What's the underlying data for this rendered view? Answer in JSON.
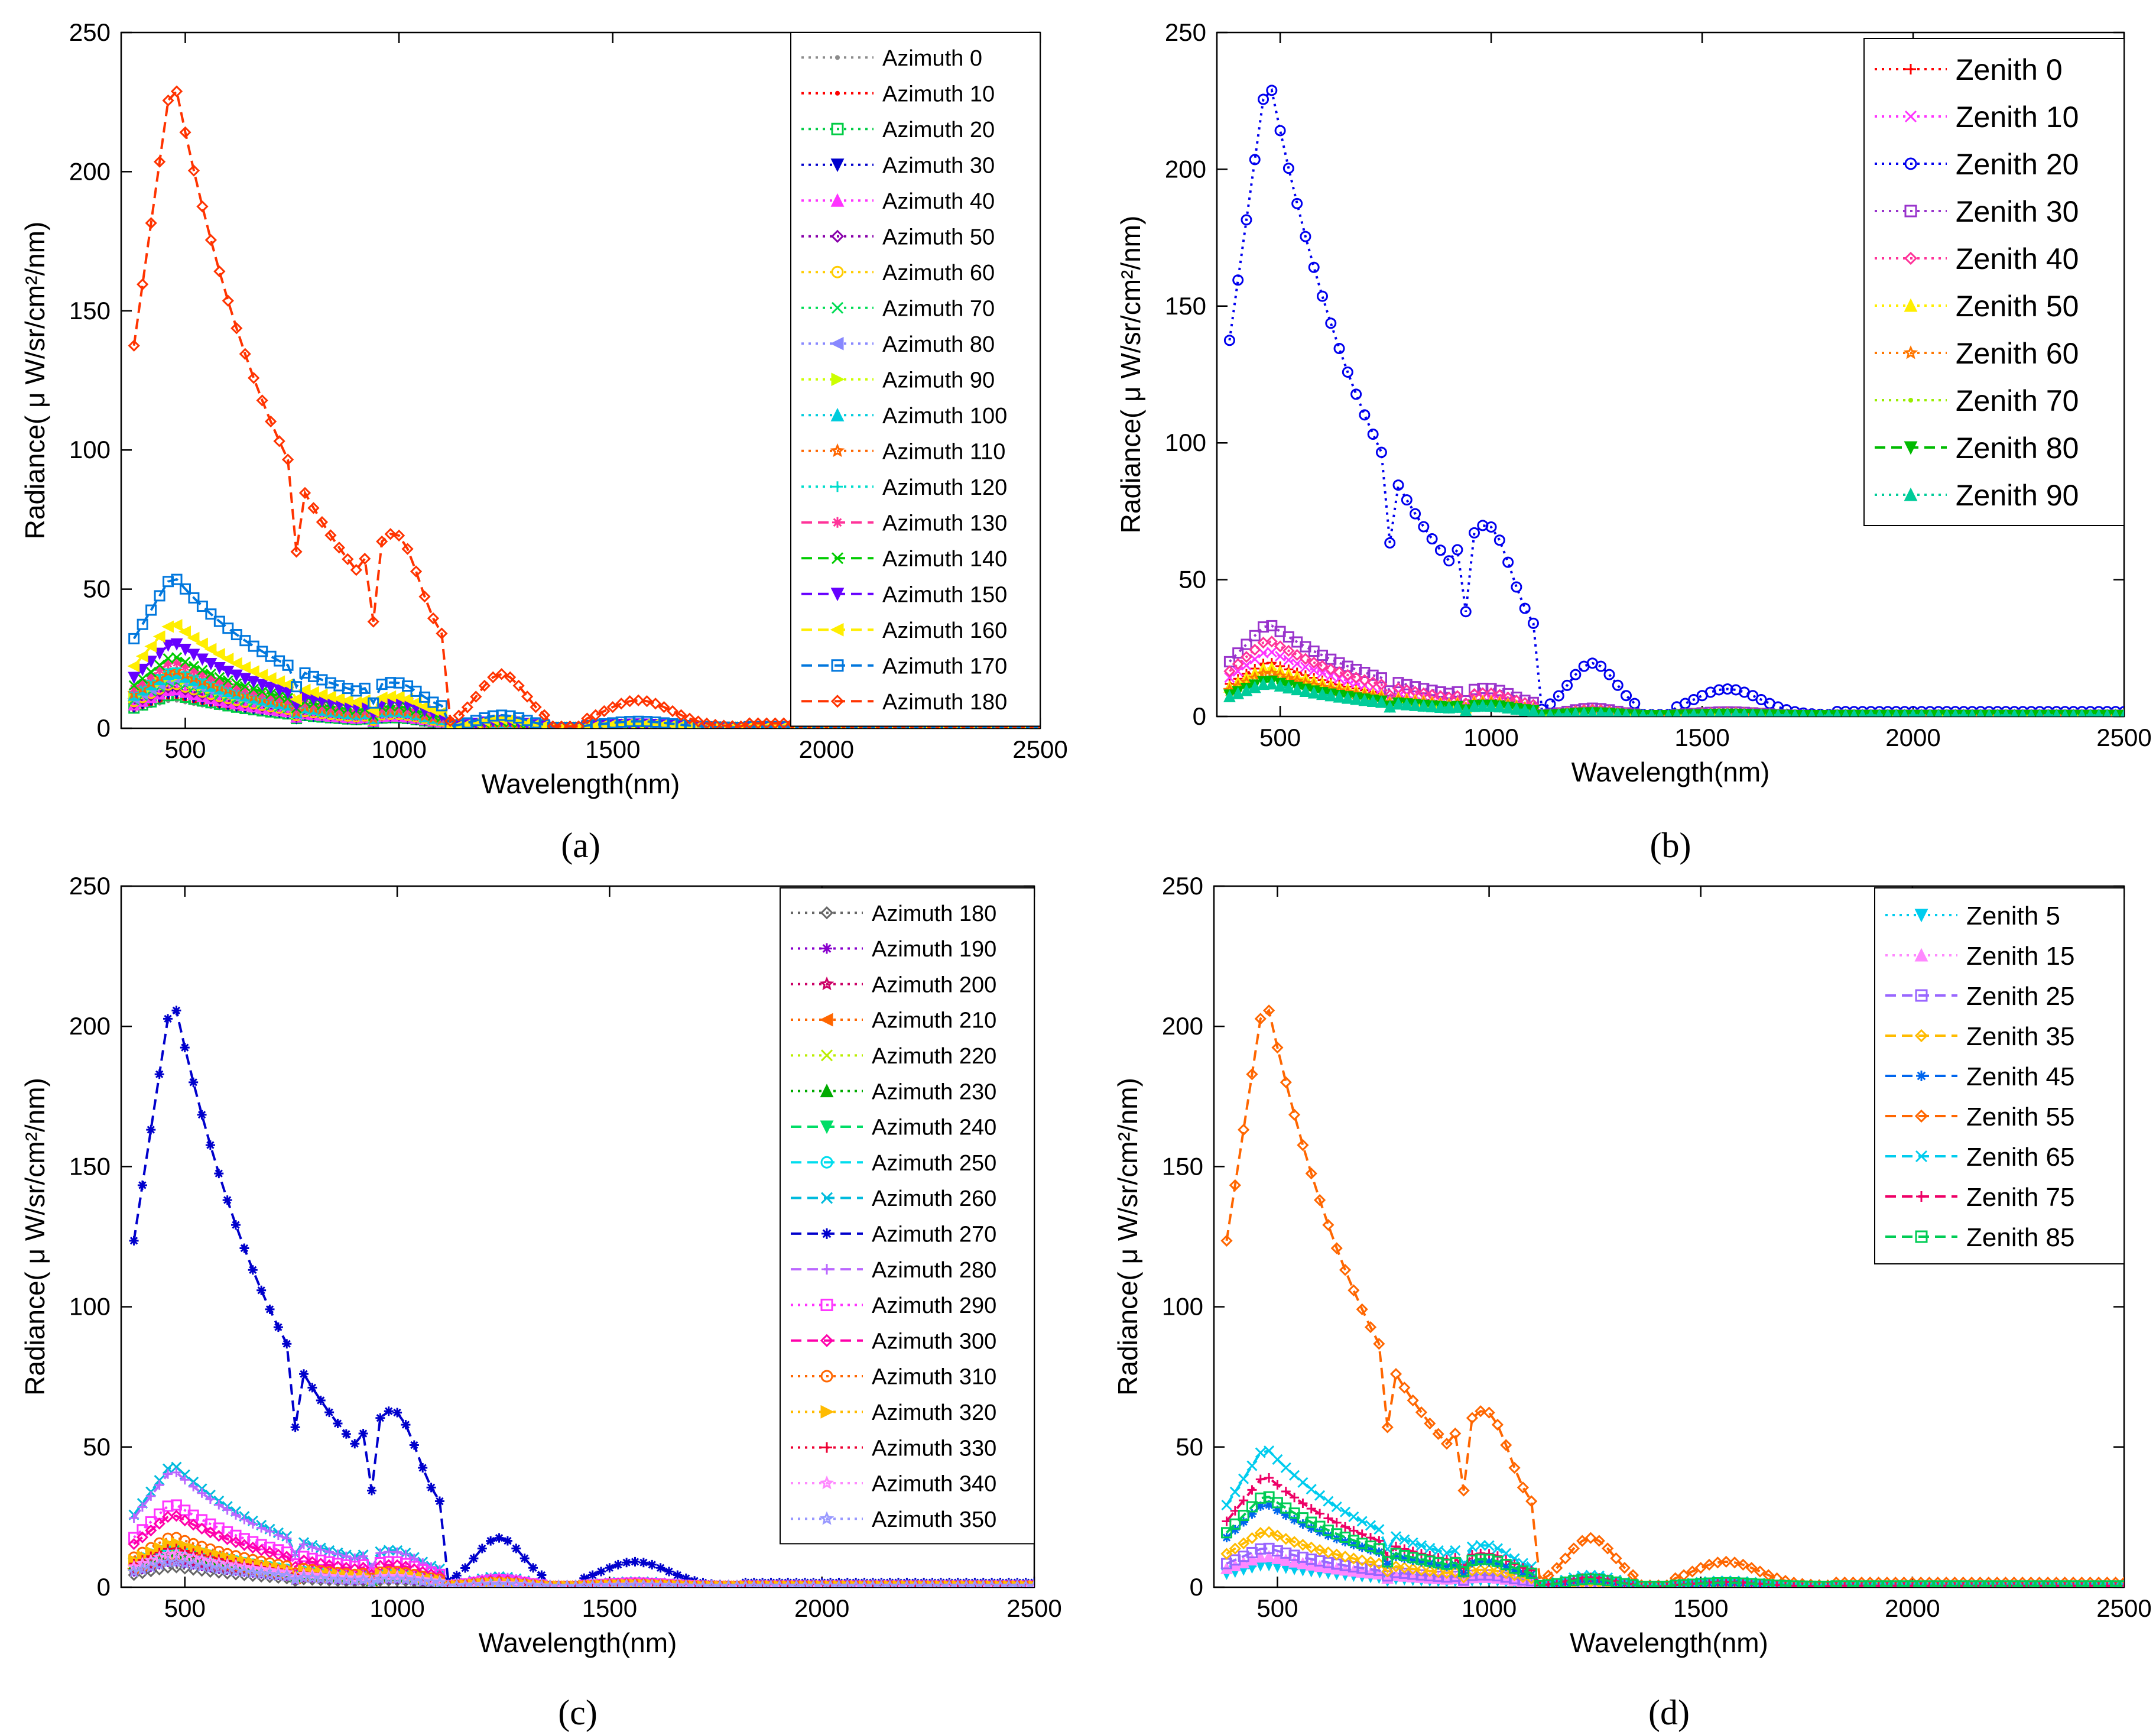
{
  "chart_data": [
    {
      "type": "line",
      "panel_label": "(a)",
      "xlabel": "Wavelength(nm)",
      "ylabel": "Radiance( μ W/sr/cm²/nm)",
      "xlim": [
        350,
        2500
      ],
      "ylim": [
        0,
        250
      ],
      "xticks": [
        "500",
        "1000",
        "1500",
        "2000",
        "2500"
      ],
      "yticks": [
        "0",
        "50",
        "100",
        "150",
        "200",
        "250"
      ],
      "legend_position": "top-right",
      "series": [
        {
          "name": "Azimuth 0",
          "color": "#8c8c8c",
          "dash": "dot",
          "marker": "dot",
          "peak": 10
        },
        {
          "name": "Azimuth 10",
          "color": "#ff0000",
          "dash": "dot",
          "marker": "dot",
          "peak": 11
        },
        {
          "name": "Azimuth 20",
          "color": "#00cc44",
          "dash": "dot",
          "marker": "square",
          "peak": 12
        },
        {
          "name": "Azimuth 30",
          "color": "#0000cc",
          "dash": "dot",
          "marker": "triangle-down",
          "peak": 13
        },
        {
          "name": "Azimuth 40",
          "color": "#ff33ff",
          "dash": "dot",
          "marker": "triangle-up",
          "peak": 14
        },
        {
          "name": "Azimuth 50",
          "color": "#8800aa",
          "dash": "dot",
          "marker": "diamond",
          "peak": 15
        },
        {
          "name": "Azimuth 60",
          "color": "#ffcc00",
          "dash": "dot",
          "marker": "circle",
          "peak": 16
        },
        {
          "name": "Azimuth 70",
          "color": "#00dd55",
          "dash": "dot",
          "marker": "x",
          "peak": 17
        },
        {
          "name": "Azimuth 80",
          "color": "#8888ff",
          "dash": "dot",
          "marker": "triangle-left",
          "peak": 18
        },
        {
          "name": "Azimuth 90",
          "color": "#ccff00",
          "dash": "dot",
          "marker": "triangle-right",
          "peak": 19
        },
        {
          "name": "Azimuth 100",
          "color": "#00ccdd",
          "dash": "dot",
          "marker": "triangle-up",
          "peak": 20
        },
        {
          "name": "Azimuth 110",
          "color": "#ff6600",
          "dash": "dot",
          "marker": "star",
          "peak": 21
        },
        {
          "name": "Azimuth 120",
          "color": "#00ddcc",
          "dash": "dot",
          "marker": "plus",
          "peak": 22
        },
        {
          "name": "Azimuth 130",
          "color": "#ff3399",
          "dash": "dash",
          "marker": "asterisk",
          "peak": 24
        },
        {
          "name": "Azimuth 140",
          "color": "#00cc00",
          "dash": "dash",
          "marker": "x",
          "peak": 26
        },
        {
          "name": "Azimuth 150",
          "color": "#6600ff",
          "dash": "dash",
          "marker": "triangle-down",
          "peak": 31
        },
        {
          "name": "Azimuth 160",
          "color": "#ffee00",
          "dash": "dash",
          "marker": "triangle-left",
          "peak": 38
        },
        {
          "name": "Azimuth 170",
          "color": "#0077dd",
          "dash": "dash",
          "marker": "square",
          "peak": 55
        },
        {
          "name": "Azimuth 180",
          "color": "#ff3300",
          "dash": "dash",
          "marker": "diamond",
          "peak": 236
        }
      ]
    },
    {
      "type": "line",
      "panel_label": "(b)",
      "xlabel": "Wavelength(nm)",
      "ylabel": "Radiance( μ W/sr/cm²/nm)",
      "xlim": [
        350,
        2500
      ],
      "ylim": [
        0,
        250
      ],
      "xticks": [
        "500",
        "1000",
        "1500",
        "2000",
        "2500"
      ],
      "yticks": [
        "0",
        "50",
        "100",
        "150",
        "200",
        "250"
      ],
      "legend_position": "top-right",
      "series": [
        {
          "name": "Zenith 0",
          "color": "#ff0000",
          "dash": "dot",
          "marker": "plus",
          "peak": 20
        },
        {
          "name": "Zenith 10",
          "color": "#ff33ff",
          "dash": "dot",
          "marker": "x",
          "peak": 24
        },
        {
          "name": "Zenith 20",
          "color": "#0000ee",
          "dash": "dot",
          "marker": "circle",
          "peak": 236
        },
        {
          "name": "Zenith 30",
          "color": "#9933cc",
          "dash": "dot",
          "marker": "square",
          "peak": 34
        },
        {
          "name": "Zenith 40",
          "color": "#ff3399",
          "dash": "dot",
          "marker": "diamond",
          "peak": 28
        },
        {
          "name": "Zenith 50",
          "color": "#ffee00",
          "dash": "dot",
          "marker": "triangle-up",
          "peak": 18
        },
        {
          "name": "Zenith 60",
          "color": "#ff7700",
          "dash": "dot",
          "marker": "star",
          "peak": 16
        },
        {
          "name": "Zenith 70",
          "color": "#99ee00",
          "dash": "dot",
          "marker": "dot",
          "peak": 14
        },
        {
          "name": "Zenith 80",
          "color": "#00bb00",
          "dash": "dash",
          "marker": "triangle-down",
          "peak": 13
        },
        {
          "name": "Zenith 90",
          "color": "#00cc99",
          "dash": "dot",
          "marker": "triangle-up",
          "peak": 12
        }
      ]
    },
    {
      "type": "line",
      "panel_label": "(c)",
      "xlabel": "Wavelength(nm)",
      "ylabel": "Radiance( μ W/sr/cm²/nm)",
      "xlim": [
        350,
        2500
      ],
      "ylim": [
        0,
        250
      ],
      "xticks": [
        "500",
        "1000",
        "1500",
        "2000",
        "2500"
      ],
      "yticks": [
        "0",
        "50",
        "100",
        "150",
        "200",
        "250"
      ],
      "legend_position": "top-right",
      "series": [
        {
          "name": "Azimuth 180",
          "color": "#666666",
          "dash": "dot",
          "marker": "diamond",
          "peak": 7
        },
        {
          "name": "Azimuth 190",
          "color": "#8800cc",
          "dash": "dot",
          "marker": "asterisk",
          "peak": 9
        },
        {
          "name": "Azimuth 200",
          "color": "#cc0066",
          "dash": "dot",
          "marker": "star",
          "peak": 10
        },
        {
          "name": "Azimuth 210",
          "color": "#ff6600",
          "dash": "dot",
          "marker": "triangle-left",
          "peak": 11
        },
        {
          "name": "Azimuth 220",
          "color": "#bbee00",
          "dash": "dot",
          "marker": "x",
          "peak": 12
        },
        {
          "name": "Azimuth 230",
          "color": "#00aa00",
          "dash": "dot",
          "marker": "triangle-up",
          "peak": 13
        },
        {
          "name": "Azimuth 240",
          "color": "#00dd66",
          "dash": "dash",
          "marker": "triangle-down",
          "peak": 14
        },
        {
          "name": "Azimuth 250",
          "color": "#00ddee",
          "dash": "dash",
          "marker": "circle",
          "peak": 15
        },
        {
          "name": "Azimuth 260",
          "color": "#00bbdd",
          "dash": "dash",
          "marker": "x",
          "peak": 44
        },
        {
          "name": "Azimuth 270",
          "color": "#0000cc",
          "dash": "dash",
          "marker": "asterisk",
          "peak": 212
        },
        {
          "name": "Azimuth 280",
          "color": "#bb66ff",
          "dash": "dash",
          "marker": "plus",
          "peak": 42
        },
        {
          "name": "Azimuth 290",
          "color": "#ff33ff",
          "dash": "dot",
          "marker": "square",
          "peak": 30
        },
        {
          "name": "Azimuth 300",
          "color": "#ff00aa",
          "dash": "dash",
          "marker": "diamond",
          "peak": 26
        },
        {
          "name": "Azimuth 310",
          "color": "#ff6600",
          "dash": "dot",
          "marker": "circle",
          "peak": 18
        },
        {
          "name": "Azimuth 320",
          "color": "#ffbb00",
          "dash": "dot",
          "marker": "triangle-right",
          "peak": 16
        },
        {
          "name": "Azimuth 330",
          "color": "#ee0033",
          "dash": "dot",
          "marker": "plus",
          "peak": 14
        },
        {
          "name": "Azimuth 340",
          "color": "#ff88ff",
          "dash": "dot",
          "marker": "star",
          "peak": 12
        },
        {
          "name": "Azimuth 350",
          "color": "#9999ff",
          "dash": "dot",
          "marker": "hexagram",
          "peak": 9
        }
      ]
    },
    {
      "type": "line",
      "panel_label": "(d)",
      "xlabel": "Wavelength(nm)",
      "ylabel": "Radiance( μ W/sr/cm²/nm)",
      "xlim": [
        350,
        2500
      ],
      "ylim": [
        0,
        250
      ],
      "xticks": [
        "500",
        "1000",
        "1500",
        "2000",
        "2500"
      ],
      "yticks": [
        "0",
        "50",
        "100",
        "150",
        "200",
        "250"
      ],
      "legend_position": "top-right",
      "series": [
        {
          "name": "Zenith 5",
          "color": "#00ccee",
          "dash": "dot",
          "marker": "triangle-down",
          "peak": 8
        },
        {
          "name": "Zenith 15",
          "color": "#ff88ff",
          "dash": "dot",
          "marker": "triangle-up",
          "peak": 11
        },
        {
          "name": "Zenith 25",
          "color": "#9966ff",
          "dash": "dash",
          "marker": "square",
          "peak": 14
        },
        {
          "name": "Zenith 35",
          "color": "#ffbb00",
          "dash": "dash",
          "marker": "diamond",
          "peak": 20
        },
        {
          "name": "Zenith 45",
          "color": "#0066ee",
          "dash": "dash",
          "marker": "asterisk",
          "peak": 30
        },
        {
          "name": "Zenith 55",
          "color": "#ff6600",
          "dash": "dash",
          "marker": "diamond",
          "peak": 212
        },
        {
          "name": "Zenith 65",
          "color": "#00ccee",
          "dash": "dash",
          "marker": "x",
          "peak": 50
        },
        {
          "name": "Zenith 75",
          "color": "#ee0066",
          "dash": "dash",
          "marker": "plus",
          "peak": 40
        },
        {
          "name": "Zenith 85",
          "color": "#00cc55",
          "dash": "dash",
          "marker": "square",
          "peak": 33
        }
      ]
    }
  ]
}
